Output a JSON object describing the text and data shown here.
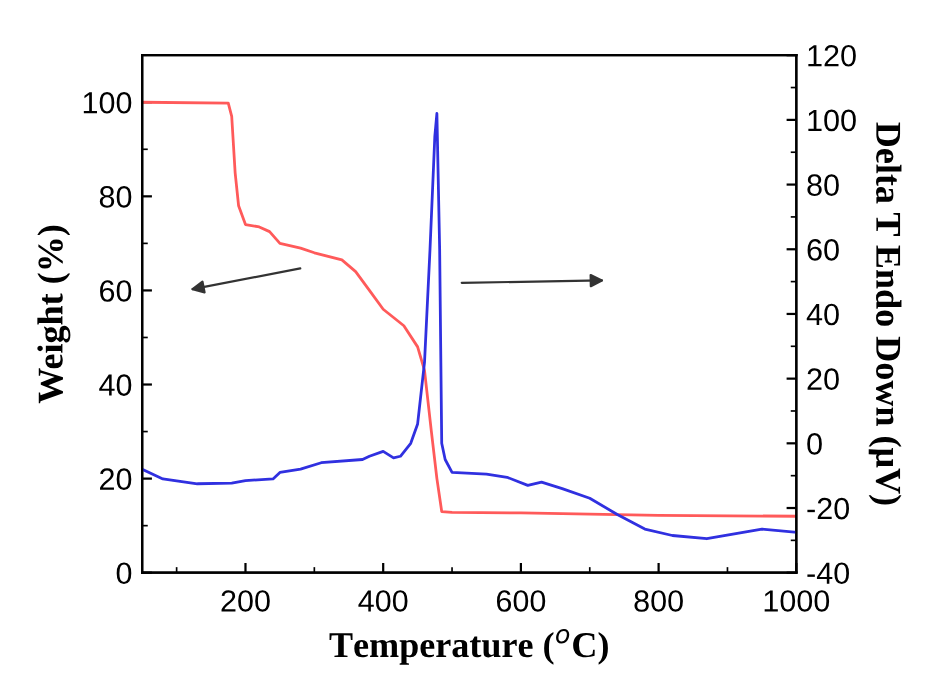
{
  "chart_data": {
    "type": "line",
    "xlabel": "Temperature ($^{o}$C)",
    "ylabel": "Weight (%)",
    "y2label": "Delta T Endo Down (μV)",
    "xlim": [
      50,
      1000
    ],
    "xticks": [
      200,
      400,
      600,
      800,
      1000
    ],
    "ylim": [
      0,
      110
    ],
    "yticks": [
      0,
      20,
      40,
      60,
      80,
      100
    ],
    "y2lim": [
      -40,
      120
    ],
    "y2ticks": [
      -40,
      -20,
      0,
      20,
      40,
      60,
      80,
      100,
      120
    ],
    "grid": false,
    "marker": "none",
    "line_style": "solid",
    "series": [
      {
        "color": "#ff5a5a",
        "x": [
          50,
          175,
          180,
          185,
          190,
          200,
          220,
          235,
          250,
          280,
          300,
          340,
          360,
          380,
          400,
          430,
          450,
          460,
          470,
          478,
          485,
          500,
          600,
          800,
          1000
        ],
        "values": [
          100,
          99.8,
          97,
          85,
          78,
          74,
          73.5,
          72.5,
          70,
          69,
          68,
          66.5,
          64,
          60,
          56,
          52.5,
          48,
          43,
          30,
          20,
          13,
          12.8,
          12.7,
          12.2,
          12
        ]
      },
      {
        "color": "#3030e0",
        "axis": "y2",
        "x": [
          50,
          80,
          130,
          180,
          200,
          240,
          250,
          280,
          310,
          370,
          380,
          400,
          415,
          425,
          440,
          450,
          460,
          468,
          475,
          478,
          482,
          485,
          490,
          500,
          550,
          580,
          610,
          630,
          660,
          700,
          740,
          780,
          820,
          870,
          950,
          1000
        ],
        "values": [
          -8,
          -11,
          -12.5,
          -12.3,
          -11.5,
          -11,
          -9,
          -8,
          -6,
          -5,
          -4,
          -2.5,
          -4.5,
          -4,
          0,
          6,
          25,
          60,
          95,
          102,
          60,
          0,
          -5,
          -9,
          -9.5,
          -10.5,
          -13,
          -12,
          -14,
          -17,
          -22,
          -26.5,
          -28.5,
          -29.5,
          -26.5,
          -27.5
        ]
      }
    ]
  }
}
